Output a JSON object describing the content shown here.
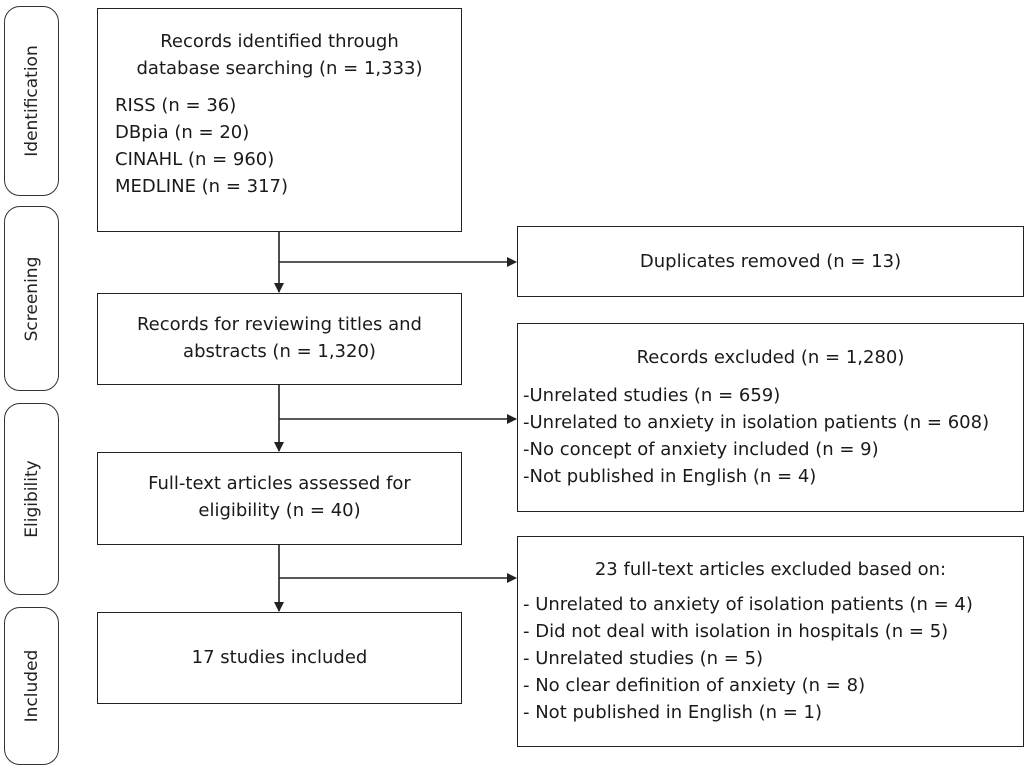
{
  "phases": {
    "identification": "Identification",
    "screening": "Screening",
    "eligibility": "Eligibility",
    "included": "Included"
  },
  "boxes": {
    "identified": {
      "heading": [
        "Records identified through",
        "database searching (n = 1,333)"
      ],
      "sources": [
        "RISS (n = 36)",
        "DBpia (n = 20)",
        "CINAHL (n = 960)",
        "MEDLINE (n = 317)"
      ]
    },
    "duplicates": {
      "text": "Duplicates removed (n = 13)"
    },
    "screened": {
      "lines": [
        "Records for reviewing titles and",
        "abstracts (n = 1,320)"
      ]
    },
    "excluded_records": {
      "heading": "Records excluded (n = 1,280)",
      "items": [
        "-Unrelated studies (n = 659)",
        "-Unrelated to anxiety in isolation patients (n = 608)",
        "-No concept of anxiety included (n = 9)",
        "-Not published in English (n = 4)"
      ]
    },
    "full_text": {
      "lines": [
        "Full-text articles assessed for",
        "eligibility (n = 40)"
      ]
    },
    "excluded_full_text": {
      "heading": "23 full-text articles excluded based on:",
      "items": [
        "- Unrelated to anxiety of isolation patients (n = 4)",
        "- Did not deal with isolation in hospitals (n = 5)",
        "- Unrelated studies (n = 5)",
        "- No clear definition of anxiety (n = 8)",
        "- Not published in English (n = 1)"
      ]
    },
    "included": {
      "text": "17 studies included"
    }
  },
  "colors": {
    "line": "#222222",
    "background": "#ffffff"
  }
}
